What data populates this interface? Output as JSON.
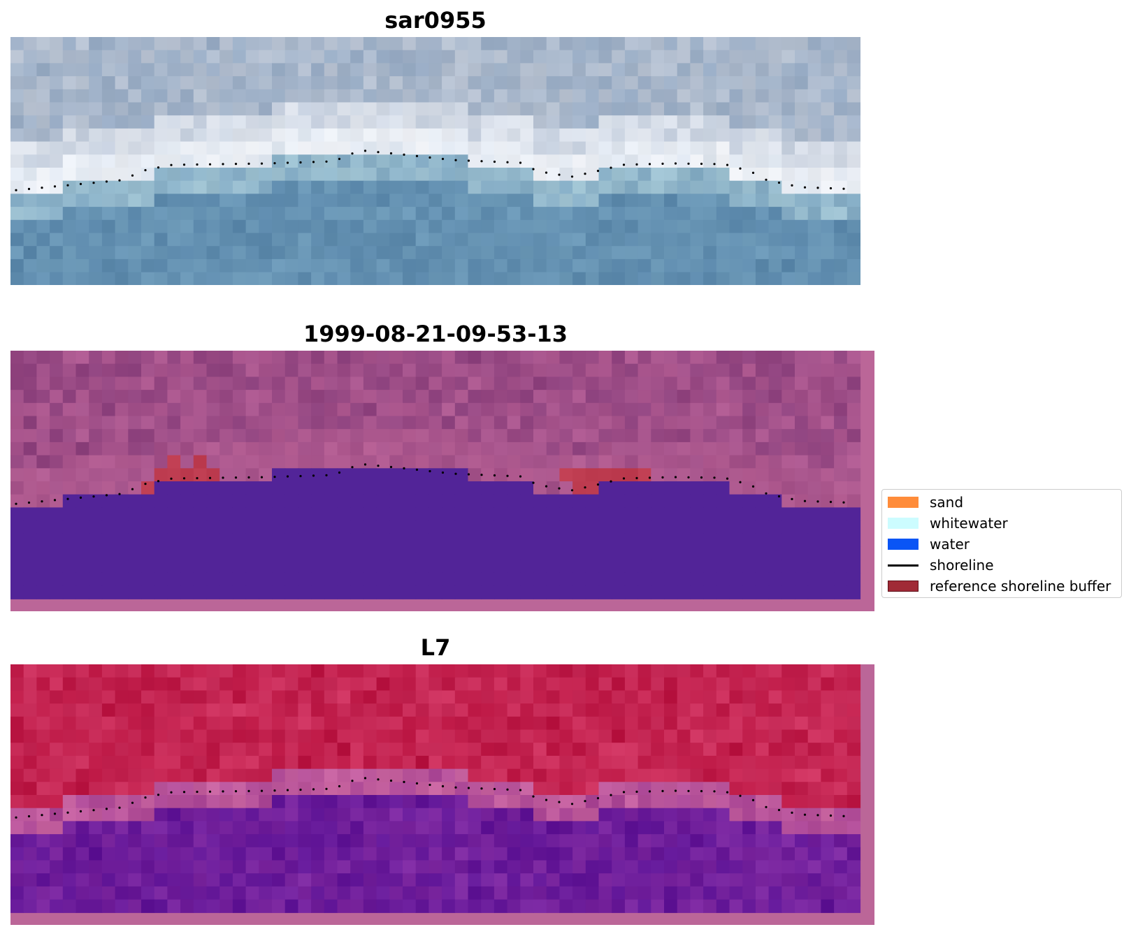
{
  "panels": [
    {
      "title": "sar0955"
    },
    {
      "title": "1999-08-21-09-53-13"
    },
    {
      "title": "L7"
    }
  ],
  "legend": {
    "items": [
      {
        "label": "sand",
        "color": "#ff8c3a",
        "kind": "patch"
      },
      {
        "label": "whitewater",
        "color": "#ccfcff",
        "kind": "patch"
      },
      {
        "label": "water",
        "color": "#0a55f5",
        "kind": "patch"
      },
      {
        "label": "shoreline",
        "color": "#000000",
        "kind": "line"
      },
      {
        "label": "reference shoreline buffer",
        "color": "#a02a36",
        "kind": "patch"
      }
    ]
  }
}
